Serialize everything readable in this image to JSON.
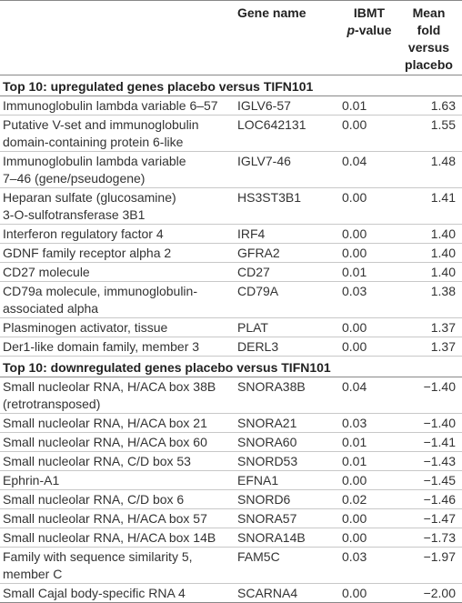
{
  "header": {
    "gene": "Gene name",
    "pvalue": {
      "line1": "IBMT",
      "italic": "p",
      "rest": "-value"
    },
    "mean": "Mean fold versus placebo"
  },
  "sections": [
    {
      "title": "Top 10: upregulated genes placebo versus TIFN101",
      "rows": [
        {
          "description": [
            "Immunoglobulin lambda variable 6–57"
          ],
          "gene": "IGLV6-57",
          "p": "0.01",
          "fold": "1.63"
        },
        {
          "description": [
            "Putative V-set and immunoglobulin",
            "domain-containing protein 6-like"
          ],
          "gene": "LOC642131",
          "p": "0.00",
          "fold": "1.55"
        },
        {
          "description": [
            "Immunoglobulin lambda variable",
            "7–46 (gene/pseudogene)"
          ],
          "gene": "IGLV7-46",
          "p": "0.04",
          "fold": "1.48"
        },
        {
          "description": [
            "Heparan sulfate (glucosamine)",
            "3-O-sulfotransferase 3B1"
          ],
          "gene": "HS3ST3B1",
          "p": "0.00",
          "fold": "1.41"
        },
        {
          "description": [
            "Interferon regulatory factor 4"
          ],
          "gene": "IRF4",
          "p": "0.00",
          "fold": "1.40"
        },
        {
          "description": [
            "GDNF family receptor alpha 2"
          ],
          "gene": "GFRA2",
          "p": "0.00",
          "fold": "1.40"
        },
        {
          "description": [
            "CD27 molecule"
          ],
          "gene": "CD27",
          "p": "0.01",
          "fold": "1.40"
        },
        {
          "description": [
            "CD79a molecule, immunoglobulin-",
            "associated alpha"
          ],
          "gene": "CD79A",
          "p": "0.03",
          "fold": "1.38"
        },
        {
          "description": [
            "Plasminogen activator, tissue"
          ],
          "gene": "PLAT",
          "p": "0.00",
          "fold": "1.37"
        },
        {
          "description": [
            "Der1-like domain family, member 3"
          ],
          "gene": "DERL3",
          "p": "0.00",
          "fold": "1.37"
        }
      ]
    },
    {
      "title": "Top 10: downregulated genes placebo versus TIFN101",
      "rows": [
        {
          "description": [
            "Small nucleolar RNA, H/ACA box 38B",
            "(retrotransposed)"
          ],
          "gene": "SNORA38B",
          "p": "0.04",
          "fold": "−1.40"
        },
        {
          "description": [
            "Small nucleolar RNA, H/ACA box 21"
          ],
          "gene": "SNORA21",
          "p": "0.03",
          "fold": "−1.40"
        },
        {
          "description": [
            "Small nucleolar RNA, H/ACA box 60"
          ],
          "gene": "SNORA60",
          "p": "0.01",
          "fold": "−1.41"
        },
        {
          "description": [
            "Small nucleolar RNA, C/D box 53"
          ],
          "gene": "SNORD53",
          "p": "0.01",
          "fold": "−1.43"
        },
        {
          "description": [
            "Ephrin-A1"
          ],
          "gene": "EFNA1",
          "p": "0.00",
          "fold": "−1.45"
        },
        {
          "description": [
            "Small nucleolar RNA, C/D box 6"
          ],
          "gene": "SNORD6",
          "p": "0.02",
          "fold": "−1.46"
        },
        {
          "description": [
            "Small nucleolar RNA, H/ACA box 57"
          ],
          "gene": "SNORA57",
          "p": "0.00",
          "fold": "−1.47"
        },
        {
          "description": [
            "Small nucleolar RNA, H/ACA box 14B"
          ],
          "gene": "SNORA14B",
          "p": "0.00",
          "fold": "−1.73"
        },
        {
          "description": [
            "Family with sequence similarity 5,",
            "member C"
          ],
          "gene": "FAM5C",
          "p": "0.03",
          "fold": "−1.97"
        },
        {
          "description": [
            "Small Cajal body-specific RNA 4"
          ],
          "gene": "SCARNA4",
          "p": "0.00",
          "fold": "−2.00"
        }
      ]
    }
  ]
}
